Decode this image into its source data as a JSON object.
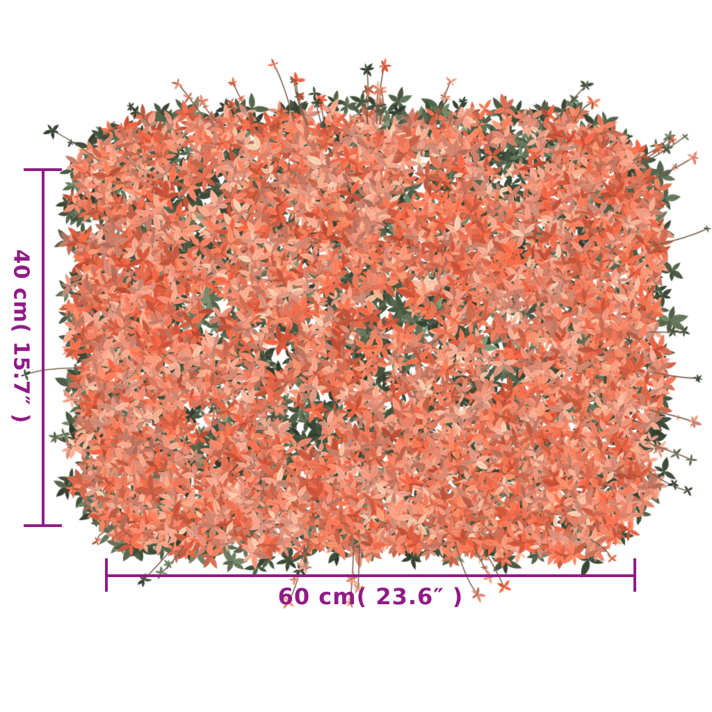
{
  "image": {
    "background_color": "#ffffff",
    "subject": "artificial-leaf-hedge-panel",
    "foliage_palette": {
      "oranges": [
        "#e8694a",
        "#ed7c5f",
        "#f08b70",
        "#f49b82",
        "#e55f41",
        "#db8872",
        "#f0a48d",
        "#e97355"
      ],
      "greens": [
        "#45523d",
        "#51604a",
        "#3a4736",
        "#5d6b52",
        "#6b7a5f",
        "#414f3b"
      ],
      "twig": "#7a604b",
      "leaf_shadow": "rgba(40,30,25,0.18)"
    }
  },
  "dimension_annotations": {
    "color": "#911b86",
    "vertical_label": "40 cm( 15.7″ )",
    "horizontal_label": "60 cm( 23.6″ )"
  }
}
